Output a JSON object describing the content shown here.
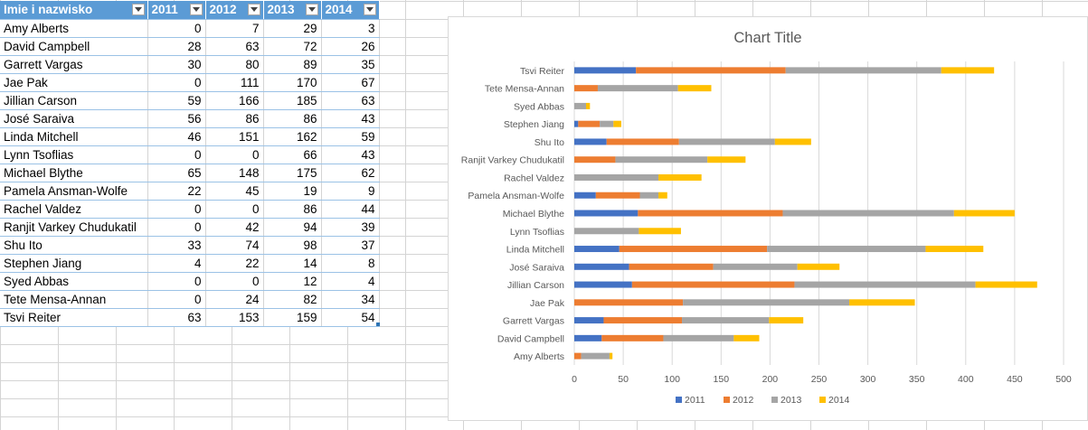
{
  "table": {
    "headers": [
      "Imie i nazwisko",
      "2011",
      "2012",
      "2013",
      "2014"
    ],
    "rows": [
      [
        "Amy Alberts",
        0,
        7,
        29,
        3
      ],
      [
        "David Campbell",
        28,
        63,
        72,
        26
      ],
      [
        "Garrett Vargas",
        30,
        80,
        89,
        35
      ],
      [
        "Jae Pak",
        0,
        111,
        170,
        67
      ],
      [
        "Jillian Carson",
        59,
        166,
        185,
        63
      ],
      [
        "José Saraiva",
        56,
        86,
        86,
        43
      ],
      [
        "Linda Mitchell",
        46,
        151,
        162,
        59
      ],
      [
        "Lynn Tsoflias",
        0,
        0,
        66,
        43
      ],
      [
        "Michael Blythe",
        65,
        148,
        175,
        62
      ],
      [
        "Pamela Ansman-Wolfe",
        22,
        45,
        19,
        9
      ],
      [
        "Rachel Valdez",
        0,
        0,
        86,
        44
      ],
      [
        "Ranjit Varkey Chudukatil",
        0,
        42,
        94,
        39
      ],
      [
        "Shu Ito",
        33,
        74,
        98,
        37
      ],
      [
        "Stephen Jiang",
        4,
        22,
        14,
        8
      ],
      [
        "Syed Abbas",
        0,
        0,
        12,
        4
      ],
      [
        "Tete Mensa-Annan",
        0,
        24,
        82,
        34
      ],
      [
        "Tsvi Reiter",
        63,
        153,
        159,
        54
      ]
    ]
  },
  "chart_data": {
    "type": "bar",
    "orientation": "horizontal",
    "stacked": true,
    "title": "Chart Title",
    "categories": [
      "Amy Alberts",
      "David Campbell",
      "Garrett Vargas",
      "Jae Pak",
      "Jillian Carson",
      "José Saraiva",
      "Linda Mitchell",
      "Lynn Tsoflias",
      "Michael Blythe",
      "Pamela Ansman-Wolfe",
      "Rachel Valdez",
      "Ranjit Varkey Chudukatil",
      "Shu Ito",
      "Stephen Jiang",
      "Syed Abbas",
      "Tete Mensa-Annan",
      "Tsvi Reiter"
    ],
    "series": [
      {
        "name": "2011",
        "color": "#4472c4",
        "values": [
          0,
          28,
          30,
          0,
          59,
          56,
          46,
          0,
          65,
          22,
          0,
          0,
          33,
          4,
          0,
          0,
          63
        ]
      },
      {
        "name": "2012",
        "color": "#ed7d31",
        "values": [
          7,
          63,
          80,
          111,
          166,
          86,
          151,
          0,
          148,
          45,
          0,
          42,
          74,
          22,
          0,
          24,
          153
        ]
      },
      {
        "name": "2013",
        "color": "#a5a5a5",
        "values": [
          29,
          72,
          89,
          170,
          185,
          86,
          162,
          66,
          175,
          19,
          86,
          94,
          98,
          14,
          12,
          82,
          159
        ]
      },
      {
        "name": "2014",
        "color": "#ffc000",
        "values": [
          3,
          26,
          35,
          67,
          63,
          43,
          59,
          43,
          62,
          9,
          44,
          39,
          37,
          8,
          4,
          34,
          54
        ]
      }
    ],
    "xlim": [
      0,
      500
    ],
    "xticks": [
      "0",
      "50",
      "100",
      "150",
      "200",
      "250",
      "300",
      "350",
      "400",
      "450",
      "500"
    ],
    "grid": true,
    "legend": "bottom"
  },
  "colors": {
    "header_bg": "#5b9bd5",
    "header_text": "#ffffff",
    "row_border": "#9bc2e6",
    "gridline": "#d9d9d9",
    "axis_text": "#595959"
  }
}
